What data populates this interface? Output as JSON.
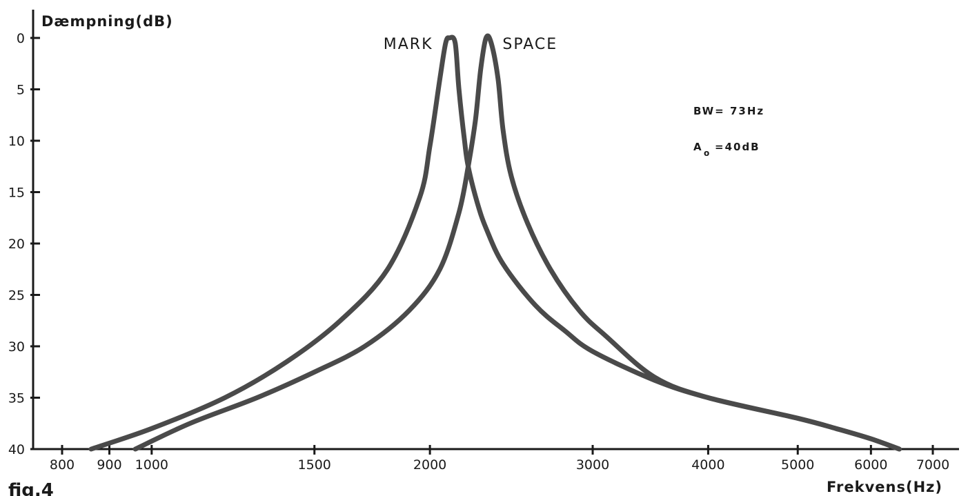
{
  "chart_data": {
    "type": "line",
    "title": "",
    "ylabel": "Dæmpning(dB)",
    "xlabel": "Frekvens(Hz)",
    "y_ticks": [
      0,
      5,
      10,
      15,
      20,
      25,
      30,
      35,
      40
    ],
    "ylim": [
      0,
      40
    ],
    "y_inverted": true,
    "x_ticks": [
      800,
      900,
      1000,
      1500,
      2000,
      3000,
      4000,
      5000,
      6000,
      7000
    ],
    "x_tick_labels": [
      "800",
      "900",
      "1000",
      "1500",
      "2000",
      "3000",
      "4000",
      "5000",
      "6000",
      "7000"
    ],
    "xlim": [
      800,
      7000
    ],
    "x_scale": "log",
    "grid": false,
    "annotations": {
      "bandwidth": "BW= 73Hz",
      "gain_main": "A",
      "gain_sub": "o",
      "gain_value": "=40dB"
    },
    "caption": "fig.4",
    "color": "#4a4a4a",
    "series": [
      {
        "name": "MARK",
        "x": [
          860,
          1000,
          1200,
          1400,
          1600,
          1800,
          1950,
          2000,
          2050,
          2080,
          2100,
          2130,
          2150,
          2180,
          2200,
          2250,
          2300,
          2400,
          2600,
          2800,
          3000,
          3500,
          4000,
          5000,
          5500,
          6000,
          6440
        ],
        "y": [
          40,
          38,
          35,
          31.5,
          27.5,
          22.5,
          15.5,
          10.5,
          4,
          0.5,
          0,
          0.5,
          5,
          10,
          12.5,
          16,
          18.5,
          22,
          26,
          28.5,
          30.5,
          33.3,
          35,
          37,
          38,
          39,
          40
        ]
      },
      {
        "name": "SPACE",
        "x": [
          960,
          1100,
          1300,
          1500,
          1700,
          1900,
          2050,
          2150,
          2200,
          2240,
          2270,
          2300,
          2330,
          2370,
          2400,
          2450,
          2550,
          2700,
          2900,
          3100,
          3500,
          4000,
          5000,
          5500,
          6000,
          6440
        ],
        "y": [
          40,
          37.5,
          35,
          32.5,
          30,
          26.5,
          22.5,
          17,
          12.5,
          8,
          3,
          0,
          0.5,
          4,
          9,
          13.5,
          18,
          22.5,
          26.5,
          29,
          33,
          35,
          37,
          38,
          39,
          40
        ]
      }
    ]
  }
}
